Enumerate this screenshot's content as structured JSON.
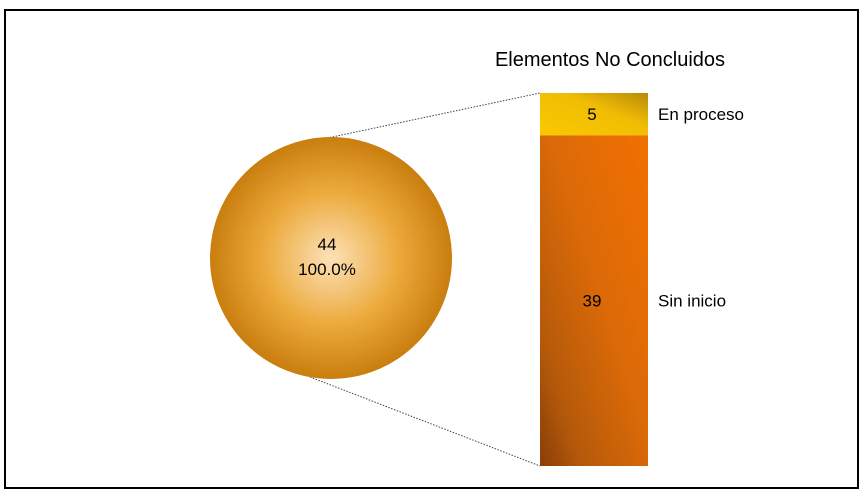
{
  "chart_data": {
    "type": "bar-of-pie",
    "title": "Elementos No Concluidos",
    "pie": {
      "value_label": "44",
      "percent_label": "100.0%",
      "value": 44,
      "percent": 100.0
    },
    "bar_segments": [
      {
        "name": "En proceso",
        "value": 5,
        "value_label": "5"
      },
      {
        "name": "Sin inicio",
        "value": 39,
        "value_label": "39"
      }
    ],
    "colors": {
      "pie_center": "#fce1b8",
      "pie_edge": "#c97e0e",
      "en_proceso": "#f5c000",
      "sin_inicio": "#e5680a",
      "border": "#000000",
      "connector": "#404040"
    }
  }
}
